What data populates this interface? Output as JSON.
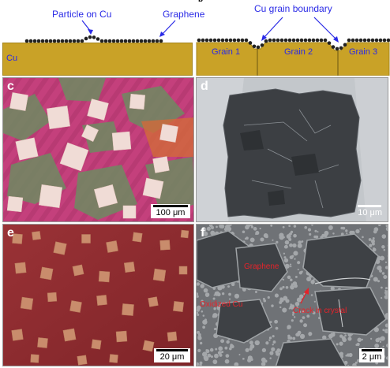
{
  "top_schematic": {
    "left": {
      "annotation": "Particle on Cu",
      "label_graphene": "Graphene",
      "substrate": "Cu"
    },
    "right": {
      "panel_letter": "b",
      "annotation": "Cu grain boundary",
      "grains": [
        "Grain 1",
        "Grain 2",
        "Grain 3"
      ]
    }
  },
  "panels": {
    "c": {
      "letter": "c",
      "scale": "100 μm"
    },
    "d": {
      "letter": "d",
      "scale": "10 μm"
    },
    "e": {
      "letter": "e",
      "scale": "20 μm"
    },
    "f": {
      "letter": "f",
      "scale": "2 μm",
      "labels": {
        "graphene": "Graphene",
        "oxidized": "Oxidized Cu",
        "crack": "Crack in crystal"
      }
    }
  },
  "colors": {
    "copper": "#c9a227",
    "annotation_blue": "#2a2ae6",
    "label_red": "#e6232a"
  }
}
